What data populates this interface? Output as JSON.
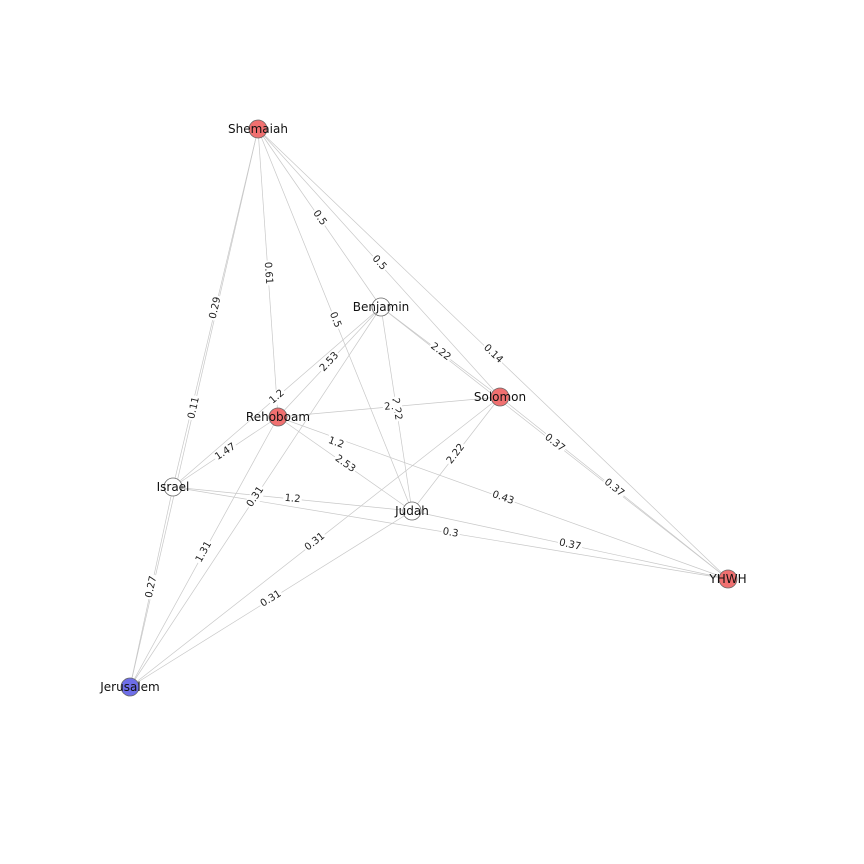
{
  "colors": {
    "red": "#f07070",
    "blue": "#6e6ee8",
    "white": "#ffffff"
  },
  "nodes": [
    {
      "id": "Shemaiah",
      "label": "Shemaiah",
      "color": "red"
    },
    {
      "id": "Benjamin",
      "label": "Benjamin",
      "color": "white"
    },
    {
      "id": "Solomon",
      "label": "Solomon",
      "color": "red"
    },
    {
      "id": "Rehoboam",
      "label": "Rehoboam",
      "color": "red"
    },
    {
      "id": "Israel",
      "label": "Israel",
      "color": "white"
    },
    {
      "id": "Judah",
      "label": "Judah",
      "color": "white"
    },
    {
      "id": "YHWH",
      "label": "YHWH",
      "color": "red"
    },
    {
      "id": "Jerusalem",
      "label": "Jerusalem",
      "color": "blue"
    }
  ],
  "edges": [
    {
      "source": "Shemaiah",
      "target": "Israel",
      "weight": "0.29"
    },
    {
      "source": "Shemaiah",
      "target": "Rehoboam",
      "weight": "0.61"
    },
    {
      "source": "Shemaiah",
      "target": "Benjamin",
      "weight": "0.5"
    },
    {
      "source": "Shemaiah",
      "target": "Judah",
      "weight": "0.5"
    },
    {
      "source": "Shemaiah",
      "target": "Solomon",
      "weight": "0.5"
    },
    {
      "source": "Shemaiah",
      "target": "YHWH",
      "weight": "0.14"
    },
    {
      "source": "Shemaiah",
      "target": "Jerusalem",
      "weight": "0.11"
    },
    {
      "source": "Benjamin",
      "target": "Solomon",
      "weight": "2.22"
    },
    {
      "source": "Benjamin",
      "target": "Judah",
      "weight": "2.22"
    },
    {
      "source": "Benjamin",
      "target": "Israel",
      "weight": "1.2"
    },
    {
      "source": "Benjamin",
      "target": "Rehoboam",
      "weight": "2.53"
    },
    {
      "source": "Benjamin",
      "target": "Jerusalem",
      "weight": "0.31"
    },
    {
      "source": "Solomon",
      "target": "Rehoboam",
      "weight": "2."
    },
    {
      "source": "Solomon",
      "target": "Judah",
      "weight": "2.22"
    },
    {
      "source": "Solomon",
      "target": "YHWH",
      "weight": "0.37"
    },
    {
      "source": "Solomon",
      "target": "Jerusalem",
      "weight": "0.31"
    },
    {
      "source": "Rehoboam",
      "target": "Israel",
      "weight": "1.47"
    },
    {
      "source": "Rehoboam",
      "target": "Judah",
      "weight": "2.53"
    },
    {
      "source": "Rehoboam",
      "target": "YHWH",
      "weight": "0.43"
    },
    {
      "source": "Rehoboam",
      "target": "Jerusalem",
      "weight": "1.31"
    },
    {
      "source": "Israel",
      "target": "Judah",
      "weight": "1.2"
    },
    {
      "source": "Israel",
      "target": "Jerusalem",
      "weight": "0.27"
    },
    {
      "source": "Israel",
      "target": "YHWH",
      "weight": "0.3"
    },
    {
      "source": "Judah",
      "target": "YHWH",
      "weight": "0.37"
    },
    {
      "source": "Judah",
      "target": "Jerusalem",
      "weight": "0.31"
    },
    {
      "source": "Benjamin",
      "target": "YHWH",
      "weight": "0.37"
    },
    {
      "source": "Rehoboam",
      "target": "Judah2",
      "weight": "1.2"
    }
  ]
}
